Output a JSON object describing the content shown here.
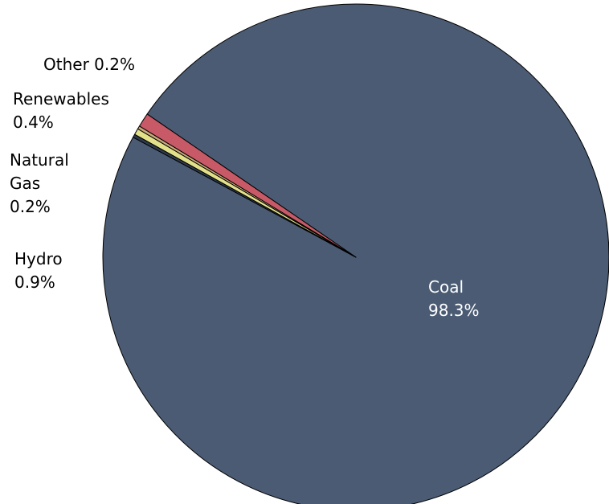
{
  "chart_data": {
    "type": "pie",
    "title": "",
    "slices": [
      {
        "label": "Coal",
        "value": 98.3,
        "value_label": "98.3%",
        "color": "#4a5b73"
      },
      {
        "label": "Hydro",
        "value": 0.9,
        "value_label": "0.9%",
        "color": "#c75a66"
      },
      {
        "label": "Natural Gas",
        "value": 0.2,
        "value_label": "0.2%",
        "color": "#c9a97b"
      },
      {
        "label": "Renewables",
        "value": 0.4,
        "value_label": "0.4%",
        "color": "#e3e08a"
      },
      {
        "label": "Other",
        "value": 0.2,
        "value_label": "0.2%",
        "color": "#2e3a4a"
      }
    ],
    "label_placement": "outside-left for small slices, inside for Coal",
    "legend": "none"
  }
}
